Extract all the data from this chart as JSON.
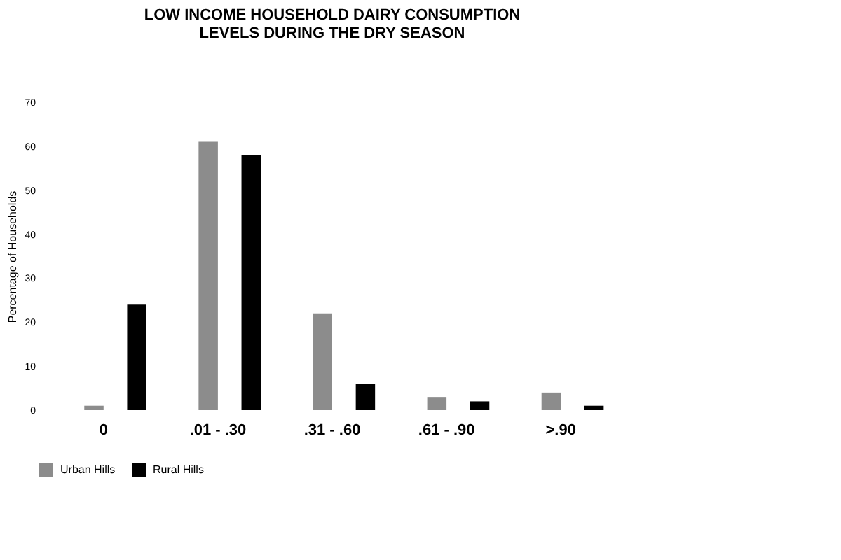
{
  "chart_data": {
    "type": "bar",
    "title": "LOW INCOME HOUSEHOLD DAIRY CONSUMPTION\nLEVELS DURING THE DRY SEASON",
    "ylabel": "Percentage of Households",
    "categories": [
      "0",
      ".01 - .30",
      ".31 - .60",
      ".61 - .90",
      ">.90"
    ],
    "series": [
      {
        "name": "Urban Hills",
        "color": "#8c8c8c",
        "values": [
          1,
          61,
          22,
          3,
          4
        ]
      },
      {
        "name": "Rural Hills",
        "color": "#000000",
        "values": [
          24,
          58,
          6,
          2,
          1
        ]
      }
    ],
    "ylim": [
      0,
      70
    ],
    "yticks": [
      0,
      10,
      20,
      30,
      40,
      50,
      60,
      70
    ],
    "grid": false,
    "legend": "bottom"
  }
}
